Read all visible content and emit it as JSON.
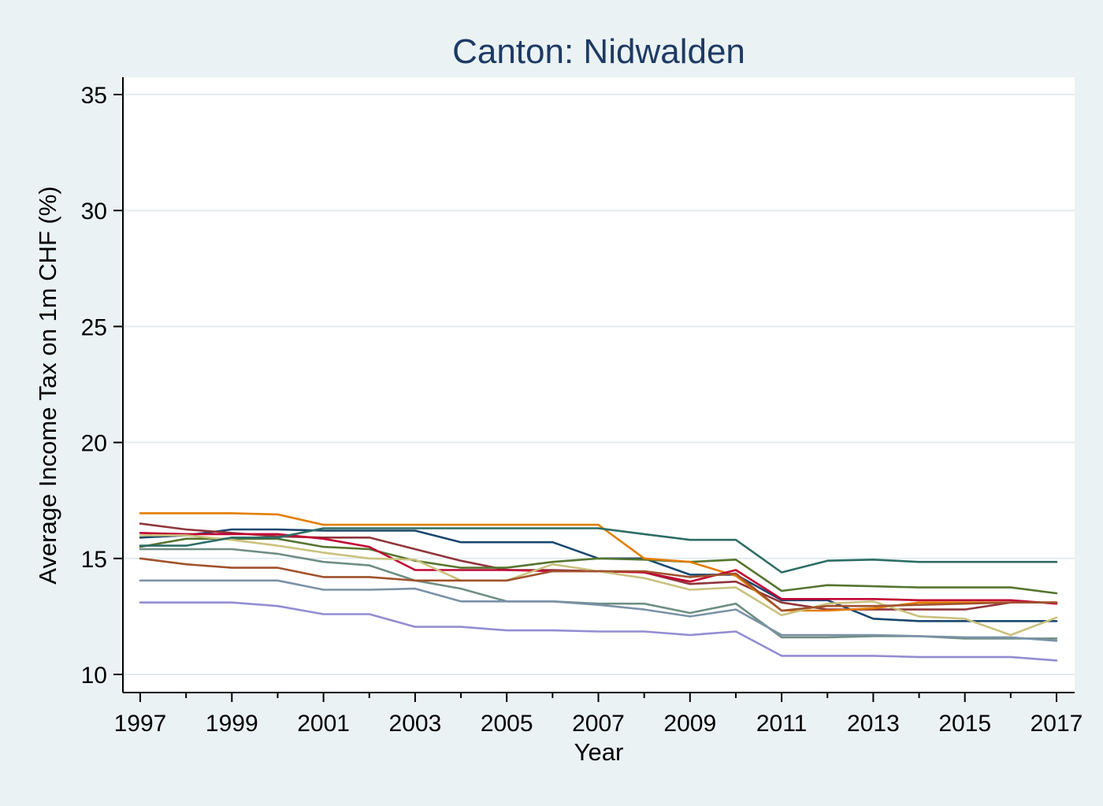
{
  "chart_data": {
    "type": "line",
    "title": "Canton: Nidwalden",
    "xlabel": "Year",
    "ylabel": "Average Income Tax on 1m CHF (%)",
    "xlim": [
      1997,
      2017
    ],
    "ylim": [
      10,
      35
    ],
    "x_ticks": [
      1997,
      1999,
      2001,
      2003,
      2005,
      2007,
      2009,
      2011,
      2013,
      2015,
      2017
    ],
    "y_ticks": [
      10,
      15,
      20,
      25,
      30,
      35
    ],
    "grid": true,
    "legend": "none",
    "x": [
      1997,
      1998,
      1999,
      2000,
      2001,
      2002,
      2003,
      2004,
      2005,
      2006,
      2007,
      2008,
      2009,
      2010,
      2011,
      2012,
      2013,
      2014,
      2015,
      2016,
      2017
    ],
    "series": [
      {
        "color": "#1a476f",
        "values": [
          15.9,
          16.0,
          16.25,
          16.25,
          16.2,
          16.2,
          16.2,
          15.7,
          15.7,
          15.7,
          15.0,
          15.0,
          14.3,
          14.3,
          13.2,
          13.2,
          12.4,
          12.3,
          12.3,
          12.3,
          12.3
        ]
      },
      {
        "color": "#90353b",
        "values": [
          16.5,
          16.25,
          16.1,
          15.95,
          15.9,
          15.9,
          15.4,
          14.9,
          14.5,
          14.5,
          14.45,
          14.4,
          13.9,
          14.0,
          13.1,
          12.8,
          12.8,
          12.8,
          12.8,
          13.1,
          13.1
        ]
      },
      {
        "color": "#55752f",
        "values": [
          15.5,
          15.85,
          15.85,
          15.85,
          15.5,
          15.4,
          14.9,
          14.6,
          14.6,
          14.85,
          15.0,
          14.95,
          14.85,
          14.95,
          13.6,
          13.85,
          13.8,
          13.75,
          13.75,
          13.75,
          13.5
        ]
      },
      {
        "color": "#e37e00",
        "values": [
          16.95,
          16.95,
          16.95,
          16.9,
          16.45,
          16.45,
          16.45,
          16.45,
          16.45,
          16.45,
          16.45,
          15.0,
          14.85,
          14.25,
          12.75,
          12.75,
          12.85,
          13.1,
          13.1,
          13.1,
          13.1
        ]
      },
      {
        "color": "#6e8e84",
        "values": [
          15.4,
          15.4,
          15.4,
          15.2,
          14.85,
          14.7,
          14.05,
          13.7,
          13.15,
          13.15,
          13.05,
          13.05,
          12.65,
          13.05,
          11.6,
          11.6,
          11.65,
          11.65,
          11.55,
          11.55,
          11.55
        ]
      },
      {
        "color": "#c10534",
        "values": [
          16.1,
          16.05,
          16.05,
          16.05,
          15.85,
          15.5,
          14.5,
          14.5,
          14.5,
          14.45,
          14.45,
          14.4,
          14.0,
          14.5,
          13.25,
          13.25,
          13.25,
          13.2,
          13.2,
          13.2,
          13.05
        ]
      },
      {
        "color": "#938dd2",
        "values": [
          13.1,
          13.1,
          13.1,
          12.95,
          12.6,
          12.6,
          12.05,
          12.05,
          11.9,
          11.9,
          11.85,
          11.85,
          11.7,
          11.85,
          10.8,
          10.8,
          10.8,
          10.75,
          10.75,
          10.75,
          10.6
        ]
      },
      {
        "color": "#cac27e",
        "values": [
          16.0,
          16.0,
          15.8,
          15.55,
          15.25,
          15.0,
          14.95,
          14.05,
          14.05,
          14.75,
          14.45,
          14.15,
          13.65,
          13.75,
          12.55,
          13.05,
          13.15,
          12.5,
          12.4,
          11.7,
          12.45
        ]
      },
      {
        "color": "#a0522d",
        "values": [
          15.0,
          14.75,
          14.6,
          14.6,
          14.2,
          14.2,
          14.05,
          14.05,
          14.05,
          14.45,
          14.45,
          14.45,
          14.2,
          14.35,
          12.75,
          12.95,
          12.95,
          13.0,
          13.05,
          13.1,
          13.1
        ]
      },
      {
        "color": "#7b92a8",
        "values": [
          14.05,
          14.05,
          14.05,
          14.05,
          13.65,
          13.65,
          13.7,
          13.15,
          13.15,
          13.15,
          13.0,
          12.8,
          12.5,
          12.8,
          11.7,
          11.7,
          11.7,
          11.65,
          11.6,
          11.6,
          11.45
        ]
      },
      {
        "color": "#2d6d66",
        "values": [
          15.55,
          15.55,
          15.9,
          15.9,
          16.3,
          16.3,
          16.3,
          16.3,
          16.3,
          16.3,
          16.3,
          16.05,
          15.8,
          15.8,
          14.4,
          14.9,
          14.95,
          14.85,
          14.85,
          14.85,
          14.85
        ]
      }
    ]
  }
}
